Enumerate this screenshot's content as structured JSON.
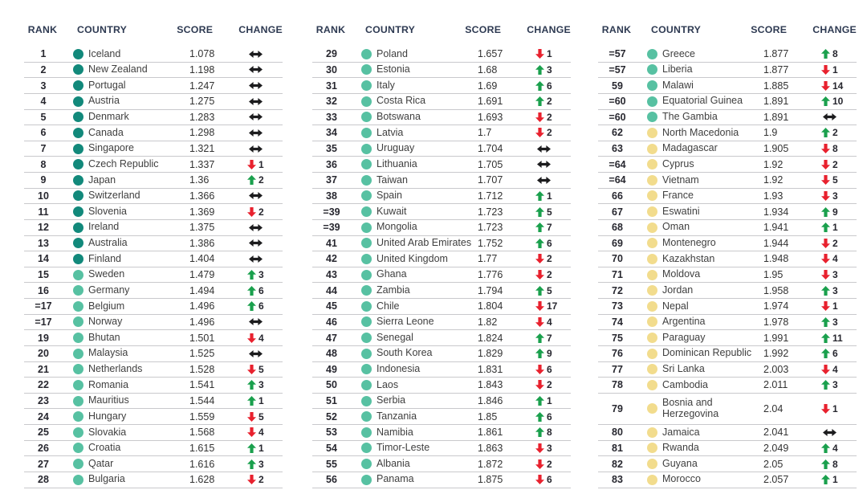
{
  "header": {
    "rank": "RANK",
    "country": "COUNTRY",
    "score": "SCORE",
    "change": "CHANGE"
  },
  "colors": {
    "tier_very_high": "#12897B",
    "tier_high": "#57C1A2",
    "tier_medium": "#F2DC8D",
    "change_up": "#1AA04D",
    "change_down": "#E8212E",
    "change_same": "#1C1C1E",
    "header_text": "#2E3A52",
    "row_line": "#C9C9CC"
  },
  "columns": [
    {
      "rows": [
        {
          "rank": "1",
          "country": "Iceland",
          "score": "1.078",
          "tier": "very_high",
          "change_dir": "same",
          "change_value": ""
        },
        {
          "rank": "2",
          "country": "New Zealand",
          "score": "1.198",
          "tier": "very_high",
          "change_dir": "same",
          "change_value": ""
        },
        {
          "rank": "3",
          "country": "Portugal",
          "score": "1.247",
          "tier": "very_high",
          "change_dir": "same",
          "change_value": ""
        },
        {
          "rank": "4",
          "country": "Austria",
          "score": "1.275",
          "tier": "very_high",
          "change_dir": "same",
          "change_value": ""
        },
        {
          "rank": "5",
          "country": "Denmark",
          "score": "1.283",
          "tier": "very_high",
          "change_dir": "same",
          "change_value": ""
        },
        {
          "rank": "6",
          "country": "Canada",
          "score": "1.298",
          "tier": "very_high",
          "change_dir": "same",
          "change_value": ""
        },
        {
          "rank": "7",
          "country": "Singapore",
          "score": "1.321",
          "tier": "very_high",
          "change_dir": "same",
          "change_value": ""
        },
        {
          "rank": "8",
          "country": "Czech Republic",
          "score": "1.337",
          "tier": "very_high",
          "change_dir": "down",
          "change_value": "1"
        },
        {
          "rank": "9",
          "country": "Japan",
          "score": "1.36",
          "tier": "very_high",
          "change_dir": "up",
          "change_value": "2"
        },
        {
          "rank": "10",
          "country": "Switzerland",
          "score": "1.366",
          "tier": "very_high",
          "change_dir": "same",
          "change_value": ""
        },
        {
          "rank": "11",
          "country": "Slovenia",
          "score": "1.369",
          "tier": "very_high",
          "change_dir": "down",
          "change_value": "2"
        },
        {
          "rank": "12",
          "country": "Ireland",
          "score": "1.375",
          "tier": "very_high",
          "change_dir": "same",
          "change_value": ""
        },
        {
          "rank": "13",
          "country": "Australia",
          "score": "1.386",
          "tier": "very_high",
          "change_dir": "same",
          "change_value": ""
        },
        {
          "rank": "14",
          "country": "Finland",
          "score": "1.404",
          "tier": "very_high",
          "change_dir": "same",
          "change_value": ""
        },
        {
          "rank": "15",
          "country": "Sweden",
          "score": "1.479",
          "tier": "high",
          "change_dir": "up",
          "change_value": "3"
        },
        {
          "rank": "16",
          "country": "Germany",
          "score": "1.494",
          "tier": "high",
          "change_dir": "up",
          "change_value": "6"
        },
        {
          "rank": "=17",
          "country": "Belgium",
          "score": "1.496",
          "tier": "high",
          "change_dir": "up",
          "change_value": "6"
        },
        {
          "rank": "=17",
          "country": "Norway",
          "score": "1.496",
          "tier": "high",
          "change_dir": "same",
          "change_value": ""
        },
        {
          "rank": "19",
          "country": "Bhutan",
          "score": "1.501",
          "tier": "high",
          "change_dir": "down",
          "change_value": "4"
        },
        {
          "rank": "20",
          "country": "Malaysia",
          "score": "1.525",
          "tier": "high",
          "change_dir": "same",
          "change_value": ""
        },
        {
          "rank": "21",
          "country": "Netherlands",
          "score": "1.528",
          "tier": "high",
          "change_dir": "down",
          "change_value": "5"
        },
        {
          "rank": "22",
          "country": "Romania",
          "score": "1.541",
          "tier": "high",
          "change_dir": "up",
          "change_value": "3"
        },
        {
          "rank": "23",
          "country": "Mauritius",
          "score": "1.544",
          "tier": "high",
          "change_dir": "up",
          "change_value": "1"
        },
        {
          "rank": "24",
          "country": "Hungary",
          "score": "1.559",
          "tier": "high",
          "change_dir": "down",
          "change_value": "5"
        },
        {
          "rank": "25",
          "country": "Slovakia",
          "score": "1.568",
          "tier": "high",
          "change_dir": "down",
          "change_value": "4"
        },
        {
          "rank": "26",
          "country": "Croatia",
          "score": "1.615",
          "tier": "high",
          "change_dir": "up",
          "change_value": "1"
        },
        {
          "rank": "27",
          "country": "Qatar",
          "score": "1.616",
          "tier": "high",
          "change_dir": "up",
          "change_value": "3"
        },
        {
          "rank": "28",
          "country": "Bulgaria",
          "score": "1.628",
          "tier": "high",
          "change_dir": "down",
          "change_value": "2"
        }
      ]
    },
    {
      "rows": [
        {
          "rank": "29",
          "country": "Poland",
          "score": "1.657",
          "tier": "high",
          "change_dir": "down",
          "change_value": "1"
        },
        {
          "rank": "30",
          "country": "Estonia",
          "score": "1.68",
          "tier": "high",
          "change_dir": "up",
          "change_value": "3"
        },
        {
          "rank": "31",
          "country": "Italy",
          "score": "1.69",
          "tier": "high",
          "change_dir": "up",
          "change_value": "6"
        },
        {
          "rank": "32",
          "country": "Costa Rica",
          "score": "1.691",
          "tier": "high",
          "change_dir": "up",
          "change_value": "2"
        },
        {
          "rank": "33",
          "country": "Botswana",
          "score": "1.693",
          "tier": "high",
          "change_dir": "down",
          "change_value": "2"
        },
        {
          "rank": "34",
          "country": "Latvia",
          "score": "1.7",
          "tier": "high",
          "change_dir": "down",
          "change_value": "2"
        },
        {
          "rank": "35",
          "country": "Uruguay",
          "score": "1.704",
          "tier": "high",
          "change_dir": "same",
          "change_value": ""
        },
        {
          "rank": "36",
          "country": "Lithuania",
          "score": "1.705",
          "tier": "high",
          "change_dir": "same",
          "change_value": ""
        },
        {
          "rank": "37",
          "country": "Taiwan",
          "score": "1.707",
          "tier": "high",
          "change_dir": "same",
          "change_value": ""
        },
        {
          "rank": "38",
          "country": "Spain",
          "score": "1.712",
          "tier": "high",
          "change_dir": "up",
          "change_value": "1"
        },
        {
          "rank": "=39",
          "country": "Kuwait",
          "score": "1.723",
          "tier": "high",
          "change_dir": "up",
          "change_value": "5"
        },
        {
          "rank": "=39",
          "country": "Mongolia",
          "score": "1.723",
          "tier": "high",
          "change_dir": "up",
          "change_value": "7"
        },
        {
          "rank": "41",
          "country": "United Arab Emirates",
          "score": "1.752",
          "tier": "high",
          "change_dir": "up",
          "change_value": "6"
        },
        {
          "rank": "42",
          "country": "United Kingdom",
          "score": "1.77",
          "tier": "high",
          "change_dir": "down",
          "change_value": "2"
        },
        {
          "rank": "43",
          "country": "Ghana",
          "score": "1.776",
          "tier": "high",
          "change_dir": "down",
          "change_value": "2"
        },
        {
          "rank": "44",
          "country": "Zambia",
          "score": "1.794",
          "tier": "high",
          "change_dir": "up",
          "change_value": "5"
        },
        {
          "rank": "45",
          "country": "Chile",
          "score": "1.804",
          "tier": "high",
          "change_dir": "down",
          "change_value": "17"
        },
        {
          "rank": "46",
          "country": "Sierra Leone",
          "score": "1.82",
          "tier": "high",
          "change_dir": "down",
          "change_value": "4"
        },
        {
          "rank": "47",
          "country": "Senegal",
          "score": "1.824",
          "tier": "high",
          "change_dir": "up",
          "change_value": "7"
        },
        {
          "rank": "48",
          "country": "South Korea",
          "score": "1.829",
          "tier": "high",
          "change_dir": "up",
          "change_value": "9"
        },
        {
          "rank": "49",
          "country": "Indonesia",
          "score": "1.831",
          "tier": "high",
          "change_dir": "down",
          "change_value": "6"
        },
        {
          "rank": "50",
          "country": "Laos",
          "score": "1.843",
          "tier": "high",
          "change_dir": "down",
          "change_value": "2"
        },
        {
          "rank": "51",
          "country": "Serbia",
          "score": "1.846",
          "tier": "high",
          "change_dir": "up",
          "change_value": "1"
        },
        {
          "rank": "52",
          "country": "Tanzania",
          "score": "1.85",
          "tier": "high",
          "change_dir": "up",
          "change_value": "6"
        },
        {
          "rank": "53",
          "country": "Namibia",
          "score": "1.861",
          "tier": "high",
          "change_dir": "up",
          "change_value": "8"
        },
        {
          "rank": "54",
          "country": "Timor-Leste",
          "score": "1.863",
          "tier": "high",
          "change_dir": "down",
          "change_value": "3"
        },
        {
          "rank": "55",
          "country": "Albania",
          "score": "1.872",
          "tier": "high",
          "change_dir": "down",
          "change_value": "2"
        },
        {
          "rank": "56",
          "country": "Panama",
          "score": "1.875",
          "tier": "high",
          "change_dir": "down",
          "change_value": "6"
        }
      ]
    },
    {
      "rows": [
        {
          "rank": "=57",
          "country": "Greece",
          "score": "1.877",
          "tier": "high",
          "change_dir": "up",
          "change_value": "8"
        },
        {
          "rank": "=57",
          "country": "Liberia",
          "score": "1.877",
          "tier": "high",
          "change_dir": "down",
          "change_value": "1"
        },
        {
          "rank": "59",
          "country": "Malawi",
          "score": "1.885",
          "tier": "high",
          "change_dir": "down",
          "change_value": "14"
        },
        {
          "rank": "=60",
          "country": "Equatorial Guinea",
          "score": "1.891",
          "tier": "high",
          "change_dir": "up",
          "change_value": "10"
        },
        {
          "rank": "=60",
          "country": "The Gambia",
          "score": "1.891",
          "tier": "high",
          "change_dir": "same",
          "change_value": ""
        },
        {
          "rank": "62",
          "country": "North Macedonia",
          "score": "1.9",
          "tier": "medium",
          "change_dir": "up",
          "change_value": "2"
        },
        {
          "rank": "63",
          "country": "Madagascar",
          "score": "1.905",
          "tier": "medium",
          "change_dir": "down",
          "change_value": "8"
        },
        {
          "rank": "=64",
          "country": "Cyprus",
          "score": "1.92",
          "tier": "medium",
          "change_dir": "down",
          "change_value": "2"
        },
        {
          "rank": "=64",
          "country": "Vietnam",
          "score": "1.92",
          "tier": "medium",
          "change_dir": "down",
          "change_value": "5"
        },
        {
          "rank": "66",
          "country": "France",
          "score": "1.93",
          "tier": "medium",
          "change_dir": "down",
          "change_value": "3"
        },
        {
          "rank": "67",
          "country": "Eswatini",
          "score": "1.934",
          "tier": "medium",
          "change_dir": "up",
          "change_value": "9"
        },
        {
          "rank": "68",
          "country": "Oman",
          "score": "1.941",
          "tier": "medium",
          "change_dir": "up",
          "change_value": "1"
        },
        {
          "rank": "69",
          "country": "Montenegro",
          "score": "1.944",
          "tier": "medium",
          "change_dir": "down",
          "change_value": "2"
        },
        {
          "rank": "70",
          "country": "Kazakhstan",
          "score": "1.948",
          "tier": "medium",
          "change_dir": "down",
          "change_value": "4"
        },
        {
          "rank": "71",
          "country": "Moldova",
          "score": "1.95",
          "tier": "medium",
          "change_dir": "down",
          "change_value": "3"
        },
        {
          "rank": "72",
          "country": "Jordan",
          "score": "1.958",
          "tier": "medium",
          "change_dir": "up",
          "change_value": "3"
        },
        {
          "rank": "73",
          "country": "Nepal",
          "score": "1.974",
          "tier": "medium",
          "change_dir": "down",
          "change_value": "1"
        },
        {
          "rank": "74",
          "country": "Argentina",
          "score": "1.978",
          "tier": "medium",
          "change_dir": "up",
          "change_value": "3"
        },
        {
          "rank": "75",
          "country": "Paraguay",
          "score": "1.991",
          "tier": "medium",
          "change_dir": "up",
          "change_value": "11"
        },
        {
          "rank": "76",
          "country": "Dominican Republic",
          "score": "1.992",
          "tier": "medium",
          "change_dir": "up",
          "change_value": "6"
        },
        {
          "rank": "77",
          "country": "Sri Lanka",
          "score": "2.003",
          "tier": "medium",
          "change_dir": "down",
          "change_value": "4"
        },
        {
          "rank": "78",
          "country": "Cambodia",
          "score": "2.011",
          "tier": "medium",
          "change_dir": "up",
          "change_value": "3"
        },
        {
          "rank": "79",
          "country": "Bosnia and Herzegovina",
          "score": "2.04",
          "tier": "medium",
          "change_dir": "down",
          "change_value": "1"
        },
        {
          "rank": "80",
          "country": "Jamaica",
          "score": "2.041",
          "tier": "medium",
          "change_dir": "same",
          "change_value": ""
        },
        {
          "rank": "81",
          "country": "Rwanda",
          "score": "2.049",
          "tier": "medium",
          "change_dir": "up",
          "change_value": "4"
        },
        {
          "rank": "82",
          "country": "Guyana",
          "score": "2.05",
          "tier": "medium",
          "change_dir": "up",
          "change_value": "8"
        },
        {
          "rank": "83",
          "country": "Morocco",
          "score": "2.057",
          "tier": "medium",
          "change_dir": "up",
          "change_value": "1"
        }
      ]
    }
  ]
}
